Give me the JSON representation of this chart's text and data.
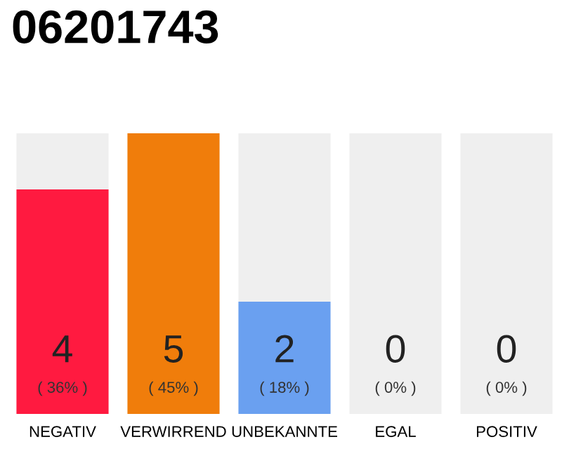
{
  "chart_data": {
    "type": "bar",
    "title": "06201743",
    "categories": [
      "NEGATIV",
      "VERWIRREND",
      "UNBEKANNTE",
      "EGAL",
      "POSITIV"
    ],
    "stacked": true,
    "ylim": [
      0,
      5
    ],
    "tick_labels": "x",
    "grid": false,
    "legend": false,
    "series": [
      {
        "colors": [
          "#ff1a40",
          "#f07d0b",
          "#6aa0f0",
          "#efefef",
          "#efefef"
        ],
        "values": [
          4,
          5,
          2,
          0,
          0
        ],
        "value_labels": [
          "4",
          "5",
          "2",
          null,
          null
        ]
      },
      {
        "color": "#efefef",
        "values": [
          1,
          0,
          3,
          5,
          5
        ]
      }
    ],
    "annotations": [
      "( 36% )",
      "( 45% )",
      "( 18% )",
      "0",
      "( 0% )",
      "0",
      "( 0% )"
    ]
  }
}
